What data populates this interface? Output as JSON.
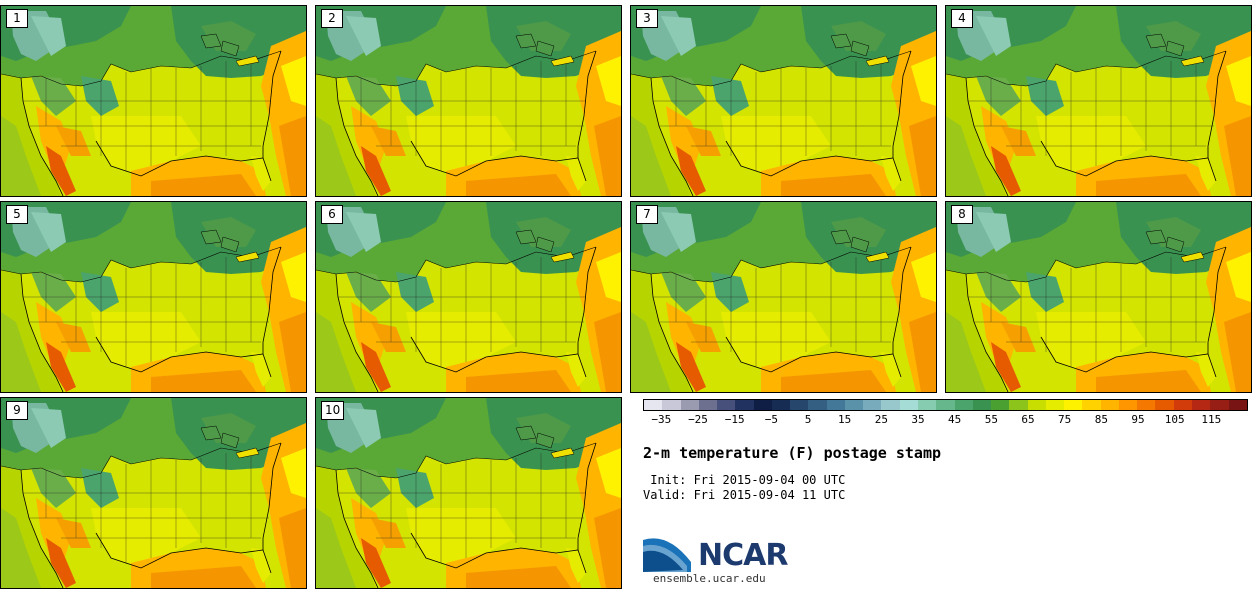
{
  "panels": [
    {
      "label": "1"
    },
    {
      "label": "2"
    },
    {
      "label": "3"
    },
    {
      "label": "4"
    },
    {
      "label": "5"
    },
    {
      "label": "6"
    },
    {
      "label": "7"
    },
    {
      "label": "8"
    },
    {
      "label": "9"
    },
    {
      "label": "10"
    }
  ],
  "colorbar": {
    "colors": [
      "#e6e6f0",
      "#c8c8d8",
      "#9a9ab0",
      "#6e7090",
      "#46507a",
      "#223260",
      "#0f1e44",
      "#162c52",
      "#26466c",
      "#345e82",
      "#447898",
      "#5a92aa",
      "#78acbc",
      "#98c8cc",
      "#a6dcd6",
      "#86ccb0",
      "#66b88c",
      "#4aa46c",
      "#3a9250",
      "#4aa030",
      "#8cc41c",
      "#c8de00",
      "#e6ec00",
      "#fff200",
      "#ffd200",
      "#ffb400",
      "#ff9600",
      "#f57800",
      "#e65a00",
      "#d23c0a",
      "#b42814",
      "#961e14",
      "#781414"
    ],
    "tick_labels": [
      "-35",
      "-25",
      "-15",
      "-5",
      "5",
      "15",
      "25",
      "35",
      "45",
      "55",
      "65",
      "75",
      "85",
      "95",
      "105",
      "115"
    ],
    "tick_values": [
      -35,
      -25,
      -15,
      -5,
      5,
      15,
      25,
      35,
      45,
      55,
      65,
      75,
      85,
      95,
      105,
      115
    ],
    "range": [
      -40,
      125
    ]
  },
  "title": "2-m temperature (F) postage stamp",
  "init_line": " Init: Fri 2015-09-04 00 UTC",
  "valid_line": "Valid: Fri 2015-09-04 11 UTC",
  "logo": {
    "brand": "NCAR",
    "url": "ensemble.ucar.edu"
  }
}
